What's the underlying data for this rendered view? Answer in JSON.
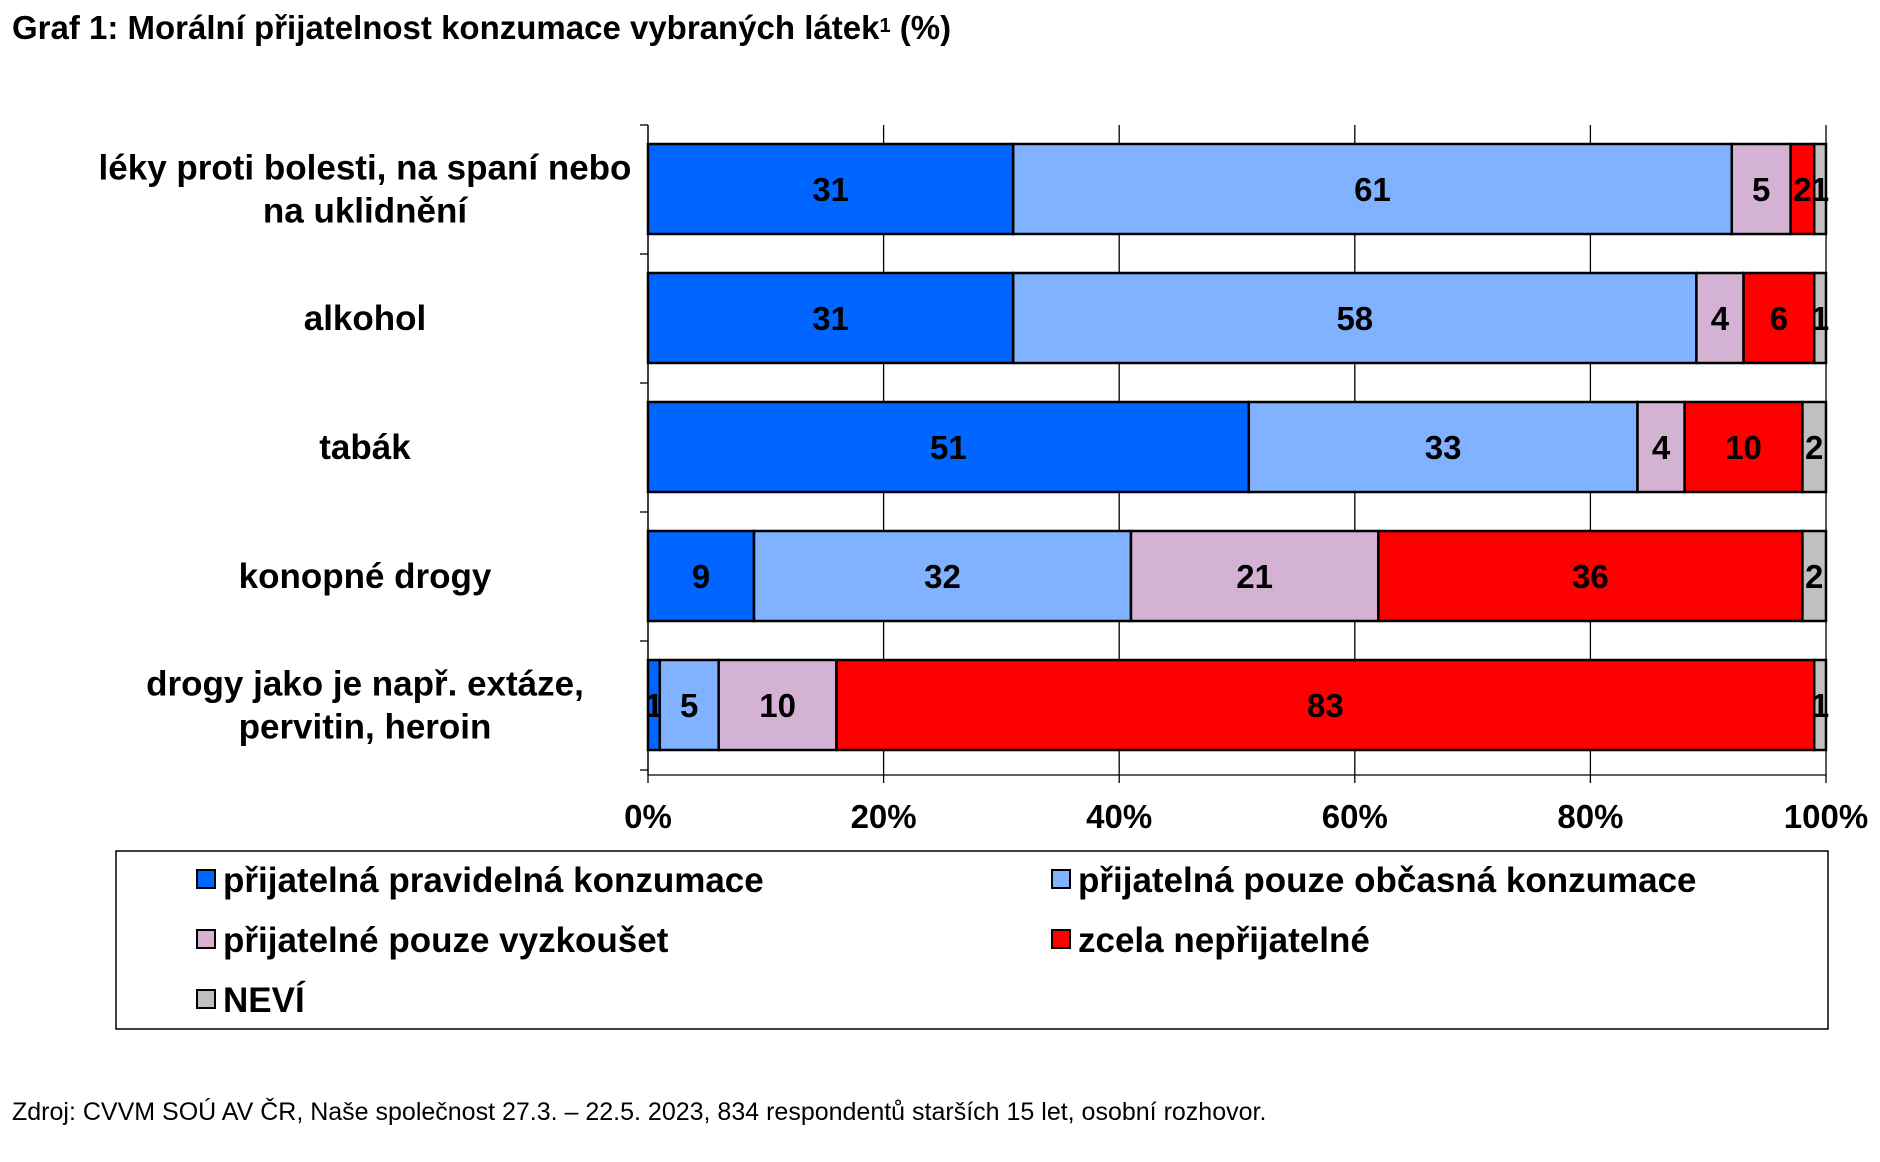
{
  "chart_data": {
    "type": "bar",
    "orientation": "horizontal",
    "stacked": true,
    "title": "Graf 1: Morální přijatelnost konzumace vybraných látek",
    "title_superscript": "1",
    "title_suffix": " (%)",
    "categories": [
      [
        "léky proti bolesti, na spaní nebo",
        "na uklidnění"
      ],
      [
        "alkohol"
      ],
      [
        "tabák"
      ],
      [
        "konopné drogy"
      ],
      [
        "drogy jako je např. extáze,",
        "pervitin, heroin"
      ]
    ],
    "series": [
      {
        "name": "přijatelná pravidelná konzumace",
        "color": "#0066FF",
        "values": [
          31,
          31,
          51,
          9,
          1
        ]
      },
      {
        "name": "přijatelná pouze občasná konzumace",
        "color": "#80B2FF",
        "values": [
          61,
          58,
          33,
          32,
          5
        ]
      },
      {
        "name": "přijatelné pouze vyzkoušet",
        "color": "#D4B2D4",
        "values": [
          5,
          4,
          4,
          21,
          10
        ]
      },
      {
        "name": "zcela nepřijatelné",
        "color": "#FF0000",
        "values": [
          2,
          6,
          10,
          36,
          83
        ]
      },
      {
        "name": "NEVÍ",
        "color": "#C0C0C0",
        "values": [
          1,
          1,
          2,
          2,
          1
        ]
      }
    ],
    "xlim": [
      0,
      100
    ],
    "x_ticks": [
      "0%",
      "20%",
      "40%",
      "60%",
      "80%",
      "100%"
    ],
    "legend_position": "bottom",
    "grid": "vertical"
  },
  "source": "Zdroj: CVVM SOÚ AV ČR, Naše společnost 27.3. – 22.5. 2023, 834 respondentů starších 15 let, osobní rozhovor."
}
